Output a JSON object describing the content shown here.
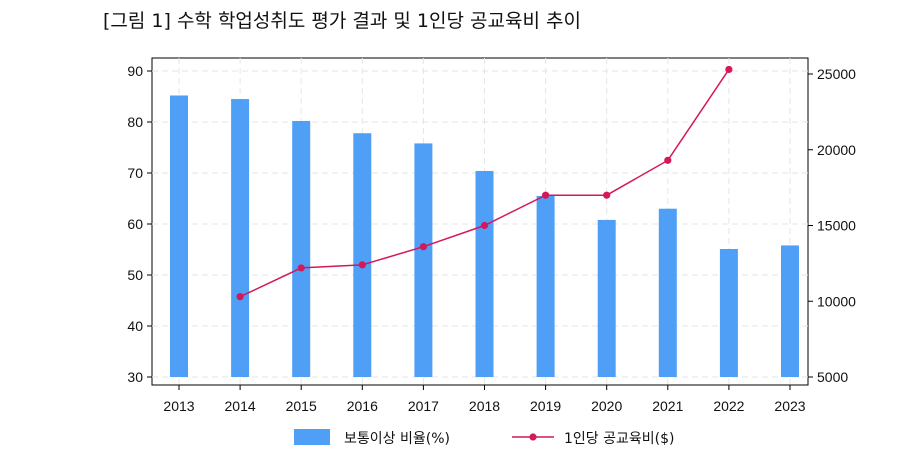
{
  "title": "[그림 1] 수학 학업성취도 평가 결과 및 1인당 공교육비 추이",
  "chart_data": {
    "type": "bar+line",
    "categories": [
      "2013",
      "2014",
      "2015",
      "2016",
      "2017",
      "2018",
      "2019",
      "2020",
      "2021",
      "2022",
      "2023"
    ],
    "series": [
      {
        "name": "보통이상 비율(%)",
        "type": "bar",
        "axis": "left",
        "color": "#4f9ff7",
        "values": [
          85.2,
          84.5,
          80.2,
          77.8,
          75.8,
          70.4,
          65.5,
          60.8,
          63.0,
          55.1,
          55.8
        ]
      },
      {
        "name": "1인당 공교육비($)",
        "type": "line",
        "axis": "right",
        "color": "#d4185a",
        "values": [
          null,
          10300,
          12200,
          12400,
          13600,
          15000,
          17000,
          17000,
          19300,
          25300,
          null
        ]
      }
    ],
    "y_left": {
      "min": 30,
      "max": 90,
      "ticks": [
        30,
        40,
        50,
        60,
        70,
        80,
        90
      ]
    },
    "y_right": {
      "min": 5000,
      "max": 25000,
      "ticks": [
        5000,
        10000,
        15000,
        20000,
        25000
      ]
    },
    "grid": true,
    "legend_position": "bottom"
  }
}
